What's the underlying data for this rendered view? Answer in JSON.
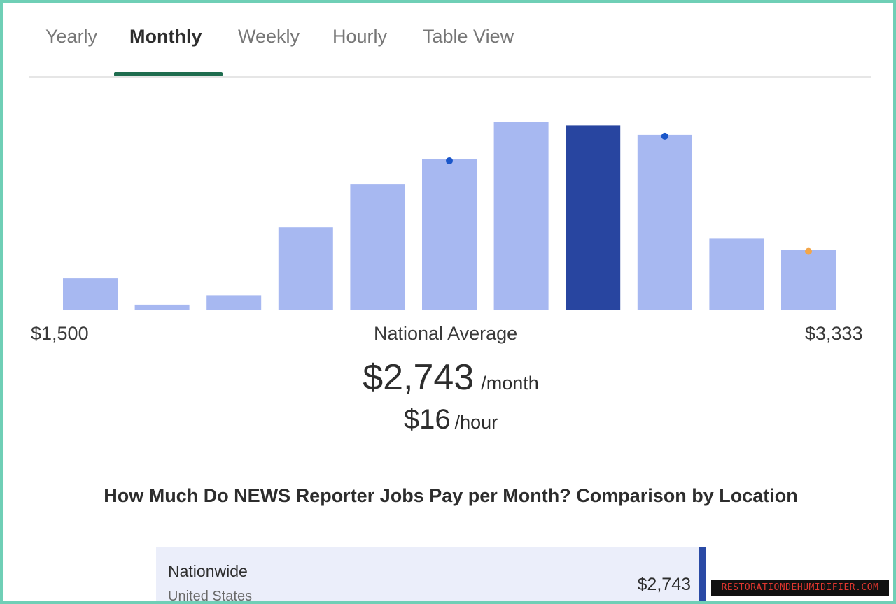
{
  "tabs": [
    {
      "label": "Yearly",
      "active": false
    },
    {
      "label": "Monthly",
      "active": true
    },
    {
      "label": "Weekly",
      "active": false
    },
    {
      "label": "Hourly",
      "active": false
    },
    {
      "label": "Table View",
      "active": false
    }
  ],
  "colors": {
    "bar": "#a7b8f1",
    "bar_highlight": "#2845a0",
    "marker_blue": "#1a56c9",
    "marker_orange": "#f3a64a",
    "tab_accent": "#1f6d4f",
    "frame": "#6fcfb6"
  },
  "chart_data": {
    "type": "bar",
    "bins": 11,
    "values": [
      17,
      3,
      8,
      44,
      67,
      80,
      100,
      98,
      93,
      38,
      32
    ],
    "highlight_index": 7,
    "markers": [
      {
        "bin": 5,
        "color": "blue"
      },
      {
        "bin": 8,
        "color": "blue"
      },
      {
        "bin": 10,
        "color": "orange"
      }
    ],
    "x_min_label": "$1,500",
    "x_max_label": "$3,333",
    "grid": false,
    "legend": "none"
  },
  "summary": {
    "label": "National Average",
    "monthly_value": "$2,743",
    "monthly_unit": "/month",
    "hourly_value": "$16",
    "hourly_unit": "/hour"
  },
  "comparison": {
    "heading": "How Much Do NEWS Reporter Jobs Pay per Month? Comparison by Location",
    "rows": [
      {
        "name": "Nationwide",
        "sub": "United States",
        "value": "$2,743"
      }
    ]
  },
  "watermark": "RESTORATIONDEHUMIDIFIER.COM"
}
